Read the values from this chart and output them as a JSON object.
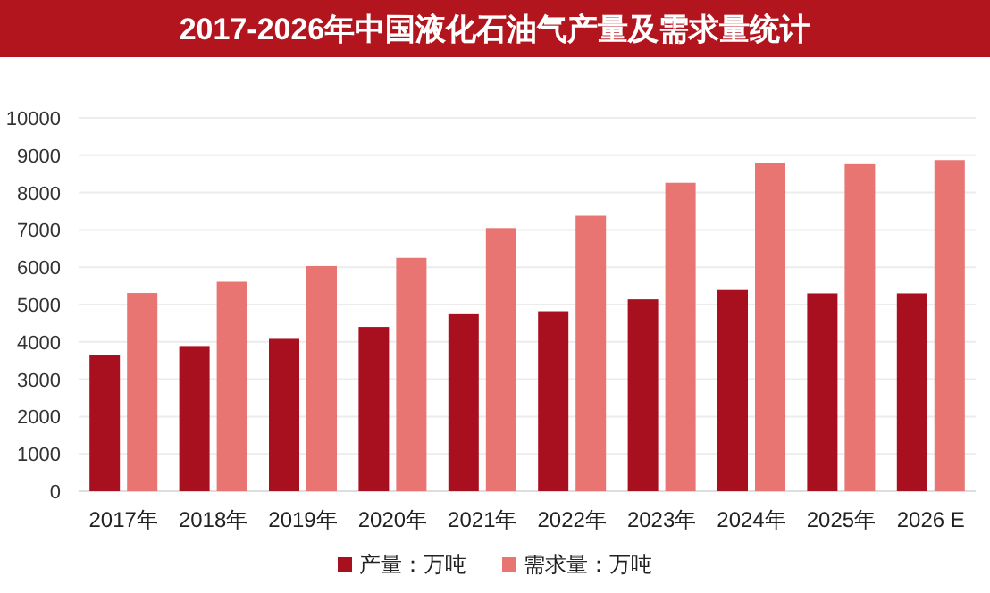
{
  "chart_data": {
    "type": "bar",
    "title": "2017-2026年中国液化石油气产量及需求量统计",
    "categories": [
      "2017年",
      "2018年",
      "2019年",
      "2020年",
      "2021年",
      "2022年",
      "2023年",
      "2024年",
      "2025年",
      "2026 E"
    ],
    "series": [
      {
        "name": "产量：万吨",
        "color": "#a8101f",
        "values": [
          3650,
          3890,
          4080,
          4400,
          4740,
          4820,
          5140,
          5390,
          5300,
          5300
        ]
      },
      {
        "name": "需求量：万吨",
        "color": "#e87572",
        "values": [
          5310,
          5610,
          6030,
          6250,
          7050,
          7380,
          8260,
          8800,
          8760,
          8870
        ]
      }
    ],
    "ylim": [
      0,
      10000
    ],
    "yticks": [
      0,
      1000,
      2000,
      3000,
      4000,
      5000,
      6000,
      7000,
      8000,
      9000,
      10000
    ],
    "grid": "y",
    "legend": "bottom"
  }
}
